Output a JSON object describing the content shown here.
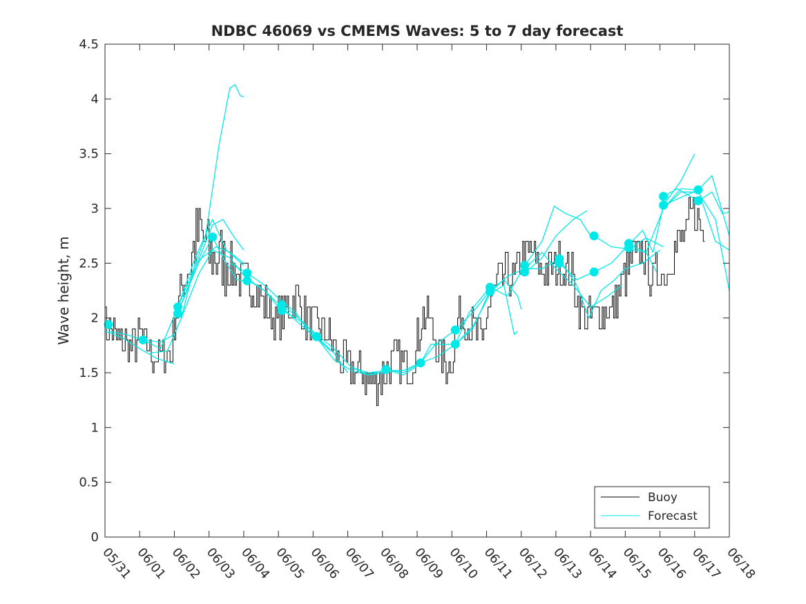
{
  "chart_data": {
    "type": "line",
    "title": "NDBC 46069 vs CMEMS Waves: 5 to 7 day forecast",
    "xlabel": "",
    "ylabel": "Wave height, m",
    "x_ticks": [
      "05/31",
      "06/01",
      "06/02",
      "06/03",
      "06/04",
      "06/05",
      "06/06",
      "06/07",
      "06/08",
      "06/09",
      "06/10",
      "06/11",
      "06/12",
      "06/13",
      "06/14",
      "06/15",
      "06/16",
      "06/17",
      "06/18"
    ],
    "y_ticks": [
      "0",
      "0.5",
      "1",
      "1.5",
      "2",
      "2.5",
      "3",
      "3.5",
      "4",
      "4.5"
    ],
    "xlim": [
      0,
      18
    ],
    "ylim": [
      0,
      4.5
    ],
    "grid": false,
    "legend_position": "bottom-right",
    "colors": {
      "buoy": "#000000",
      "forecast": "#00e8e8"
    },
    "legend": [
      {
        "label": "Buoy",
        "color": "#000000"
      },
      {
        "label": "Forecast",
        "color": "#00e8e8"
      }
    ],
    "buoy_anchors": [
      [
        0.0,
        1.9
      ],
      [
        0.3,
        1.85
      ],
      [
        0.5,
        1.78
      ],
      [
        0.8,
        1.75
      ],
      [
        1.1,
        1.8
      ],
      [
        1.4,
        1.68
      ],
      [
        1.7,
        1.65
      ],
      [
        1.95,
        1.68
      ],
      [
        2.05,
        2.0
      ],
      [
        2.3,
        2.35
      ],
      [
        2.5,
        2.5
      ],
      [
        2.75,
        2.8
      ],
      [
        3.0,
        2.6
      ],
      [
        3.25,
        2.55
      ],
      [
        3.5,
        2.5
      ],
      [
        3.75,
        2.45
      ],
      [
        3.9,
        2.35
      ],
      [
        4.1,
        2.3
      ],
      [
        4.4,
        2.25
      ],
      [
        4.7,
        2.1
      ],
      [
        4.95,
        1.95
      ],
      [
        5.3,
        2.1
      ],
      [
        5.55,
        2.2
      ],
      [
        5.8,
        2.0
      ],
      [
        6.1,
        1.9
      ],
      [
        6.3,
        1.9
      ],
      [
        6.5,
        1.85
      ],
      [
        6.8,
        1.6
      ],
      [
        7.1,
        1.55
      ],
      [
        7.4,
        1.5
      ],
      [
        7.7,
        1.42
      ],
      [
        8.0,
        1.45
      ],
      [
        8.2,
        1.55
      ],
      [
        8.5,
        1.62
      ],
      [
        8.8,
        1.55
      ],
      [
        9.0,
        1.7
      ],
      [
        9.15,
        2.0
      ],
      [
        9.35,
        2.05
      ],
      [
        9.5,
        1.85
      ],
      [
        9.7,
        1.65
      ],
      [
        9.9,
        1.55
      ],
      [
        10.1,
        1.75
      ],
      [
        10.25,
        2.05
      ],
      [
        10.5,
        1.95
      ],
      [
        10.75,
        1.85
      ],
      [
        10.9,
        1.75
      ],
      [
        11.1,
        2.1
      ],
      [
        11.3,
        2.3
      ],
      [
        11.6,
        2.4
      ],
      [
        11.85,
        2.35
      ],
      [
        12.1,
        2.55
      ],
      [
        12.35,
        2.6
      ],
      [
        12.6,
        2.4
      ],
      [
        12.9,
        2.45
      ],
      [
        13.2,
        2.5
      ],
      [
        13.5,
        2.4
      ],
      [
        13.7,
        2.1
      ],
      [
        13.9,
        2.0
      ],
      [
        14.2,
        2.05
      ],
      [
        14.5,
        2.05
      ],
      [
        14.8,
        2.15
      ],
      [
        15.0,
        2.35
      ],
      [
        15.3,
        2.55
      ],
      [
        15.6,
        2.6
      ],
      [
        15.8,
        2.35
      ],
      [
        16.0,
        2.45
      ],
      [
        16.2,
        2.4
      ],
      [
        16.4,
        2.6
      ],
      [
        16.6,
        2.7
      ],
      [
        16.8,
        2.75
      ],
      [
        16.95,
        3.0
      ],
      [
        17.1,
        2.95
      ],
      [
        17.3,
        2.75
      ]
    ],
    "forecast_lines": [
      [
        [
          0.0,
          1.88
        ],
        [
          0.5,
          1.82
        ],
        [
          1.0,
          1.72
        ],
        [
          1.5,
          1.63
        ],
        [
          2.0,
          1.58
        ]
      ],
      [
        [
          0.1,
          1.88
        ],
        [
          0.6,
          1.85
        ],
        [
          1.1,
          1.8
        ],
        [
          1.6,
          1.78
        ],
        [
          2.0,
          1.85
        ]
      ],
      [
        [
          1.1,
          1.8
        ],
        [
          1.6,
          1.72
        ],
        [
          2.1,
          2.1
        ],
        [
          2.6,
          2.55
        ],
        [
          3.1,
          2.9
        ],
        [
          3.5,
          2.62
        ],
        [
          4.0,
          2.48
        ]
      ],
      [
        [
          1.3,
          1.68
        ],
        [
          1.8,
          1.7
        ],
        [
          2.2,
          2.0
        ],
        [
          2.6,
          2.5
        ],
        [
          3.2,
          2.65
        ],
        [
          3.6,
          2.6
        ],
        [
          4.0,
          2.5
        ]
      ],
      [
        [
          2.1,
          2.1
        ],
        [
          2.5,
          2.4
        ],
        [
          2.9,
          2.75
        ],
        [
          3.3,
          3.6
        ],
        [
          3.6,
          4.1
        ],
        [
          3.75,
          4.13
        ],
        [
          3.9,
          4.03
        ],
        [
          4.0,
          4.02
        ]
      ],
      [
        [
          2.1,
          2.05
        ],
        [
          2.6,
          2.45
        ],
        [
          3.1,
          2.85
        ],
        [
          3.4,
          2.9
        ],
        [
          3.7,
          2.75
        ],
        [
          4.0,
          2.62
        ]
      ],
      [
        [
          2.1,
          2.05
        ],
        [
          2.7,
          2.5
        ],
        [
          3.1,
          2.74
        ],
        [
          3.4,
          2.55
        ],
        [
          3.8,
          2.35
        ],
        [
          4.1,
          2.33
        ]
      ],
      [
        [
          2.2,
          2.0
        ],
        [
          2.7,
          2.4
        ],
        [
          3.1,
          2.62
        ],
        [
          3.6,
          2.55
        ],
        [
          4.1,
          2.35
        ],
        [
          4.6,
          2.25
        ],
        [
          5.0,
          2.1
        ]
      ],
      [
        [
          3.6,
          2.5
        ],
        [
          4.1,
          2.41
        ],
        [
          4.6,
          2.3
        ],
        [
          5.1,
          2.15
        ],
        [
          5.5,
          2.05
        ],
        [
          6.0,
          1.82
        ]
      ],
      [
        [
          4.1,
          2.36
        ],
        [
          4.6,
          2.25
        ],
        [
          5.1,
          2.1
        ],
        [
          5.6,
          1.95
        ],
        [
          6.1,
          1.82
        ],
        [
          6.5,
          1.7
        ]
      ],
      [
        [
          5.1,
          2.12
        ],
        [
          5.6,
          2.0
        ],
        [
          6.1,
          1.83
        ],
        [
          6.6,
          1.68
        ],
        [
          7.0,
          1.5
        ]
      ],
      [
        [
          5.1,
          2.07
        ],
        [
          5.6,
          1.98
        ],
        [
          6.1,
          1.85
        ],
        [
          6.6,
          1.72
        ],
        [
          7.1,
          1.55
        ],
        [
          7.6,
          1.48
        ],
        [
          8.1,
          1.5
        ]
      ],
      [
        [
          6.1,
          1.82
        ],
        [
          6.6,
          1.62
        ],
        [
          7.1,
          1.52
        ],
        [
          7.6,
          1.48
        ],
        [
          8.1,
          1.53
        ],
        [
          8.6,
          1.48
        ],
        [
          9.1,
          1.58
        ]
      ],
      [
        [
          7.1,
          1.55
        ],
        [
          7.6,
          1.5
        ],
        [
          8.1,
          1.52
        ],
        [
          8.6,
          1.52
        ],
        [
          9.1,
          1.59
        ],
        [
          9.5,
          1.75
        ],
        [
          10.1,
          1.89
        ]
      ],
      [
        [
          8.1,
          1.53
        ],
        [
          8.6,
          1.5
        ],
        [
          9.1,
          1.59
        ],
        [
          9.6,
          1.65
        ],
        [
          10.1,
          1.76
        ],
        [
          10.6,
          1.9
        ],
        [
          11.1,
          2.25
        ]
      ],
      [
        [
          9.1,
          1.59
        ],
        [
          9.4,
          1.76
        ],
        [
          9.7,
          1.76
        ],
        [
          10.1,
          1.76
        ],
        [
          10.5,
          2.05
        ],
        [
          11.1,
          2.28
        ]
      ],
      [
        [
          10.1,
          1.89
        ],
        [
          10.6,
          2.05
        ],
        [
          11.1,
          2.25
        ],
        [
          11.5,
          2.35
        ],
        [
          11.9,
          2.2
        ],
        [
          12.0,
          2.08
        ]
      ],
      [
        [
          10.1,
          1.76
        ],
        [
          10.6,
          1.92
        ],
        [
          11.1,
          2.22
        ],
        [
          11.5,
          2.3
        ],
        [
          11.8,
          1.85
        ],
        [
          11.9,
          1.88
        ]
      ],
      [
        [
          11.1,
          2.23
        ],
        [
          11.6,
          2.38
        ],
        [
          12.1,
          2.45
        ],
        [
          12.6,
          2.6
        ],
        [
          13.0,
          2.45
        ],
        [
          13.5,
          2.3
        ],
        [
          14.0,
          2.1
        ],
        [
          14.5,
          2.2
        ],
        [
          14.9,
          2.3
        ]
      ],
      [
        [
          11.1,
          2.28
        ],
        [
          11.6,
          2.2
        ],
        [
          12.1,
          2.48
        ],
        [
          12.6,
          2.7
        ],
        [
          12.95,
          3.02
        ],
        [
          13.3,
          2.95
        ],
        [
          13.7,
          2.9
        ],
        [
          14.0,
          2.75
        ]
      ],
      [
        [
          12.1,
          2.41
        ],
        [
          12.6,
          2.55
        ],
        [
          13.0,
          2.75
        ],
        [
          13.5,
          2.9
        ],
        [
          13.9,
          2.98
        ]
      ],
      [
        [
          12.1,
          2.45
        ],
        [
          12.6,
          2.45
        ],
        [
          13.1,
          2.54
        ],
        [
          13.6,
          2.3
        ],
        [
          13.95,
          2.0
        ],
        [
          14.3,
          2.25
        ],
        [
          14.7,
          2.35
        ],
        [
          15.0,
          2.45
        ],
        [
          15.5,
          2.5
        ],
        [
          16.0,
          2.62
        ]
      ],
      [
        [
          13.1,
          2.5
        ],
        [
          13.6,
          2.35
        ],
        [
          14.1,
          2.42
        ],
        [
          14.6,
          2.5
        ],
        [
          15.1,
          2.67
        ],
        [
          15.6,
          2.6
        ],
        [
          15.9,
          2.42
        ]
      ],
      [
        [
          14.1,
          2.75
        ],
        [
          14.6,
          2.65
        ],
        [
          15.1,
          2.63
        ],
        [
          15.6,
          2.73
        ],
        [
          16.1,
          2.65
        ]
      ],
      [
        [
          15.1,
          2.67
        ],
        [
          15.5,
          2.8
        ],
        [
          15.8,
          2.6
        ],
        [
          16.1,
          3.03
        ],
        [
          16.6,
          3.25
        ],
        [
          17.0,
          3.5
        ]
      ],
      [
        [
          15.1,
          2.63
        ],
        [
          15.6,
          2.6
        ],
        [
          16.1,
          3.0
        ],
        [
          16.6,
          3.18
        ],
        [
          17.1,
          3.17
        ],
        [
          17.5,
          3.3
        ],
        [
          18.0,
          2.75
        ]
      ],
      [
        [
          16.1,
          3.11
        ],
        [
          16.5,
          3.18
        ],
        [
          17.1,
          3.07
        ],
        [
          17.5,
          3.15
        ],
        [
          17.8,
          2.95
        ],
        [
          18.0,
          2.97
        ]
      ],
      [
        [
          16.1,
          3.03
        ],
        [
          16.6,
          3.1
        ],
        [
          17.1,
          3.17
        ],
        [
          17.6,
          2.7
        ],
        [
          18.0,
          2.62
        ]
      ],
      [
        [
          16.1,
          3.0
        ],
        [
          16.6,
          3.15
        ],
        [
          17.1,
          3.15
        ],
        [
          17.6,
          2.9
        ],
        [
          18.0,
          2.25
        ]
      ]
    ],
    "forecast_markers": [
      [
        0.1,
        1.94
      ],
      [
        1.1,
        1.8
      ],
      [
        2.1,
        2.04
      ],
      [
        2.1,
        2.1
      ],
      [
        3.1,
        2.74
      ],
      [
        4.1,
        2.41
      ],
      [
        4.1,
        2.34
      ],
      [
        5.1,
        2.12
      ],
      [
        5.1,
        2.07
      ],
      [
        6.1,
        1.83
      ],
      [
        8.1,
        1.53
      ],
      [
        9.1,
        1.59
      ],
      [
        10.1,
        1.89
      ],
      [
        10.1,
        1.76
      ],
      [
        11.1,
        2.28
      ],
      [
        11.1,
        2.24
      ],
      [
        12.1,
        2.48
      ],
      [
        12.1,
        2.42
      ],
      [
        13.1,
        2.54
      ],
      [
        13.1,
        2.5
      ],
      [
        14.1,
        2.75
      ],
      [
        14.1,
        2.42
      ],
      [
        15.1,
        2.68
      ],
      [
        15.1,
        2.64
      ],
      [
        16.1,
        3.11
      ],
      [
        16.1,
        3.03
      ],
      [
        17.1,
        3.17
      ],
      [
        17.1,
        3.07
      ]
    ]
  }
}
